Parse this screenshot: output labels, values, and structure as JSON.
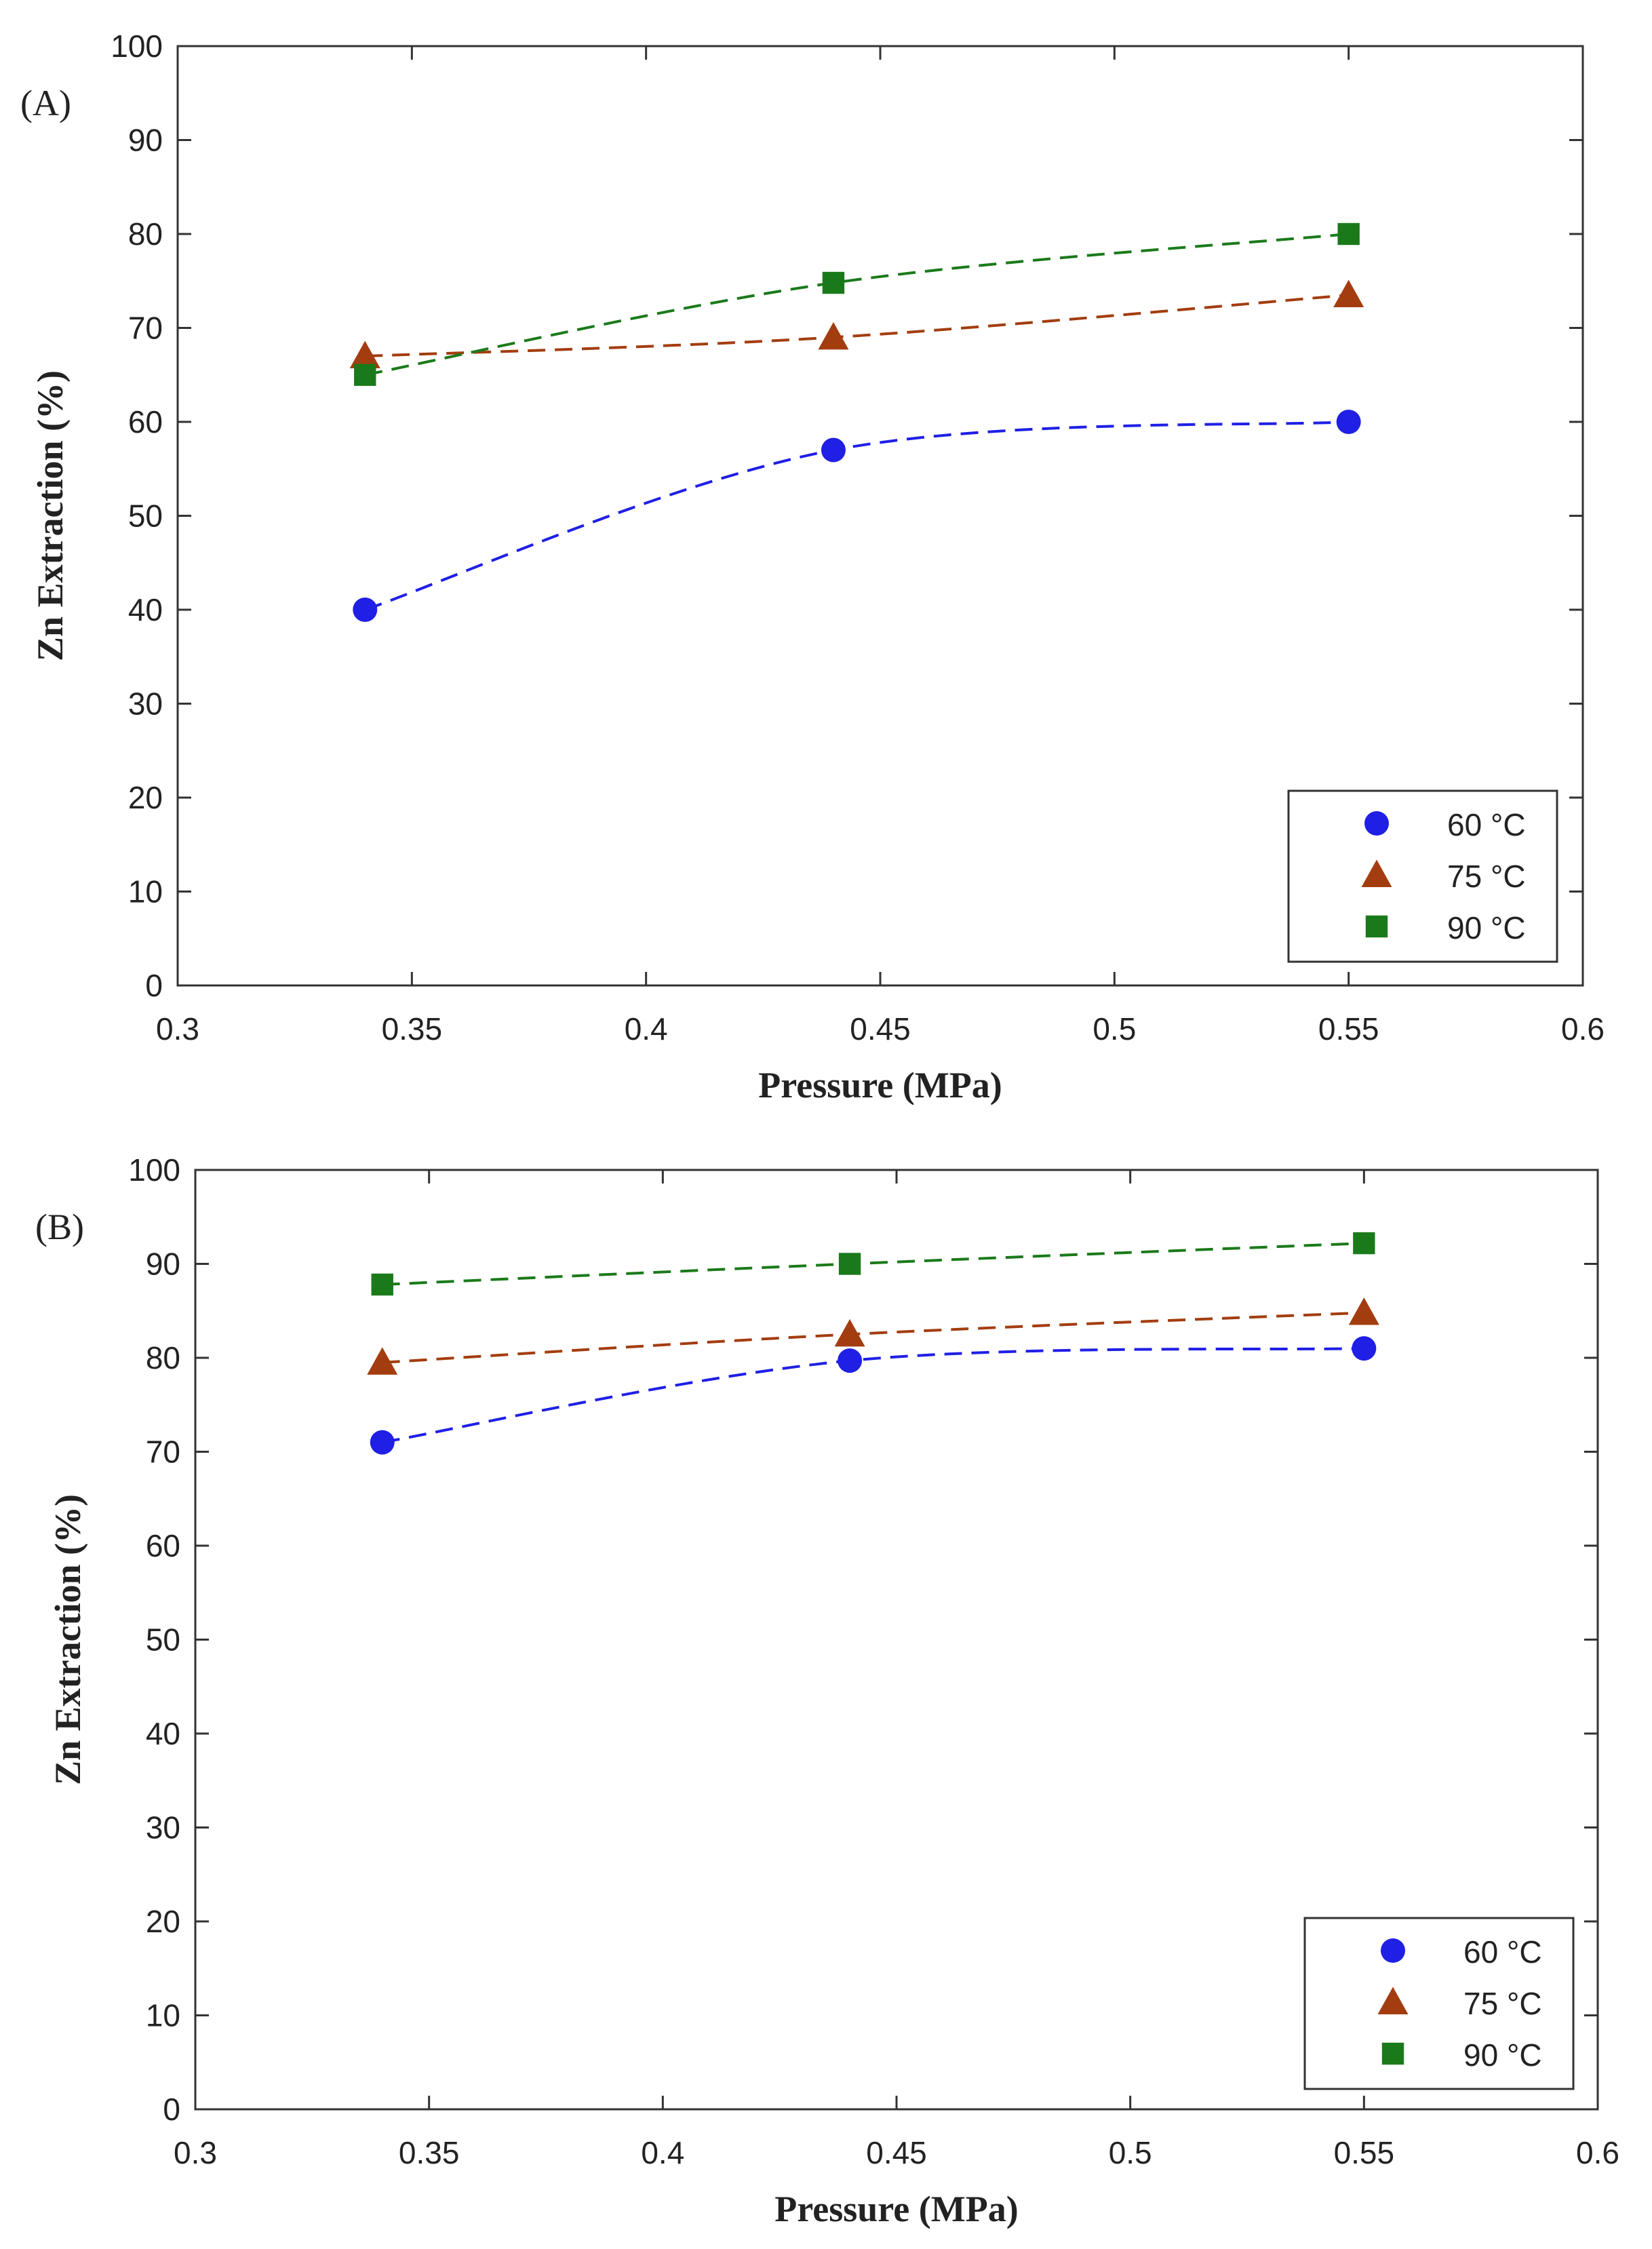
{
  "chart_data": [
    {
      "type": "line",
      "panel_label": "(A)",
      "xlabel": "Pressure (MPa)",
      "ylabel": "Zn Extraction (%)",
      "xlim": [
        0.3,
        0.6
      ],
      "ylim": [
        0,
        100
      ],
      "xticks": [
        0.3,
        0.35,
        0.4,
        0.45,
        0.5,
        0.55,
        0.6
      ],
      "xtick_labels": [
        "0.3",
        "0.35",
        "0.4",
        "0.45",
        "0.5",
        "0.55",
        "0.6"
      ],
      "yticks": [
        0,
        10,
        20,
        30,
        40,
        50,
        60,
        70,
        80,
        90,
        100
      ],
      "ytick_labels": [
        "0",
        "10",
        "20",
        "30",
        "40",
        "50",
        "60",
        "70",
        "80",
        "90",
        "100"
      ],
      "legend_position": "bottom-right",
      "series": [
        {
          "name": "60 °C",
          "marker": "circle",
          "color": "#1f1fe6",
          "x": [
            0.34,
            0.44,
            0.55
          ],
          "y": [
            40,
            57,
            60
          ]
        },
        {
          "name": "75 °C",
          "marker": "triangle",
          "color": "#a33d0f",
          "x": [
            0.34,
            0.44,
            0.55
          ],
          "y": [
            67,
            69,
            73.5
          ]
        },
        {
          "name": "90 °C",
          "marker": "square",
          "color": "#1a7a1a",
          "x": [
            0.34,
            0.44,
            0.55
          ],
          "y": [
            65,
            74.8,
            80
          ]
        }
      ]
    },
    {
      "type": "line",
      "panel_label": "(B)",
      "xlabel": "Pressure (MPa)",
      "ylabel": "Zn Extraction (%)",
      "xlim": [
        0.3,
        0.6
      ],
      "ylim": [
        0,
        100
      ],
      "xticks": [
        0.3,
        0.35,
        0.4,
        0.45,
        0.5,
        0.55,
        0.6
      ],
      "xtick_labels": [
        "0.3",
        "0.35",
        "0.4",
        "0.45",
        "0.5",
        "0.55",
        "0.6"
      ],
      "yticks": [
        0,
        10,
        20,
        30,
        40,
        50,
        60,
        70,
        80,
        90,
        100
      ],
      "ytick_labels": [
        "0",
        "10",
        "20",
        "30",
        "40",
        "50",
        "60",
        "70",
        "80",
        "90",
        "100"
      ],
      "legend_position": "bottom-right",
      "series": [
        {
          "name": "60 °C",
          "marker": "circle",
          "color": "#1f1fe6",
          "x": [
            0.34,
            0.44,
            0.55
          ],
          "y": [
            71,
            79.7,
            81
          ]
        },
        {
          "name": "75 °C",
          "marker": "triangle",
          "color": "#a33d0f",
          "x": [
            0.34,
            0.44,
            0.55
          ],
          "y": [
            79.5,
            82.5,
            84.8
          ]
        },
        {
          "name": "90 °C",
          "marker": "square",
          "color": "#1a7a1a",
          "x": [
            0.34,
            0.44,
            0.55
          ],
          "y": [
            87.8,
            90,
            92.2
          ]
        }
      ]
    }
  ]
}
